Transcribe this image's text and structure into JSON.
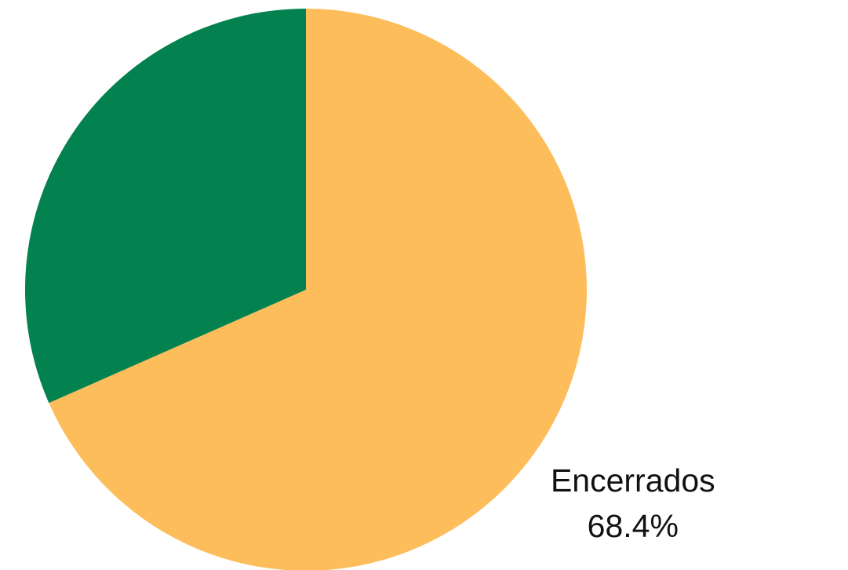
{
  "chart_data": {
    "type": "pie",
    "title": "",
    "start_angle_deg": 0,
    "direction": "clockwise",
    "slices": [
      {
        "label": "Encerrados",
        "value": 68.4,
        "display": "68.4%",
        "color": "#fdbd5b"
      },
      {
        "label": "",
        "value": 31.6,
        "display": "",
        "color": "#03824f"
      }
    ],
    "legend": "none"
  }
}
